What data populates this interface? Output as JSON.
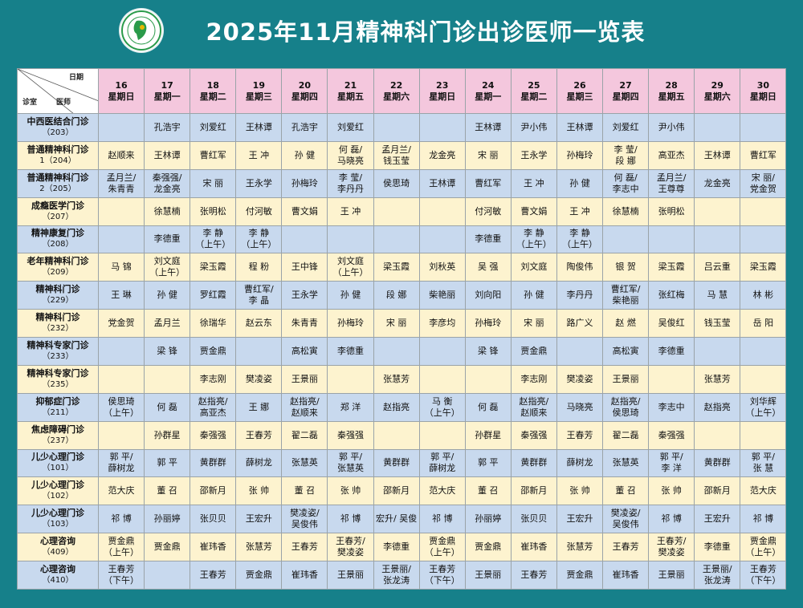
{
  "title": "2025年11月精神科门诊出诊医师一览表",
  "logo_icon": "hospital-logo-icon",
  "corner": {
    "date": "日期",
    "clinic": "诊室",
    "doctor": "医师"
  },
  "days": [
    {
      "d": "16",
      "w": "星期日"
    },
    {
      "d": "17",
      "w": "星期一"
    },
    {
      "d": "18",
      "w": "星期二"
    },
    {
      "d": "19",
      "w": "星期三"
    },
    {
      "d": "20",
      "w": "星期四"
    },
    {
      "d": "21",
      "w": "星期五"
    },
    {
      "d": "22",
      "w": "星期六"
    },
    {
      "d": "23",
      "w": "星期日"
    },
    {
      "d": "24",
      "w": "星期一"
    },
    {
      "d": "25",
      "w": "星期二"
    },
    {
      "d": "26",
      "w": "星期三"
    },
    {
      "d": "27",
      "w": "星期四"
    },
    {
      "d": "28",
      "w": "星期五"
    },
    {
      "d": "29",
      "w": "星期六"
    },
    {
      "d": "30",
      "w": "星期日"
    }
  ],
  "rows": [
    {
      "name": "中西医结合门诊",
      "sub": "（203）",
      "bg": "blue",
      "cells": [
        [],
        [
          "孔浩宇"
        ],
        [
          "刘爱红"
        ],
        [
          "王林谭"
        ],
        [
          "孔浩宇"
        ],
        [
          "刘爱红"
        ],
        [],
        [],
        [
          "王林谭"
        ],
        [
          "尹小伟"
        ],
        [
          "王林谭"
        ],
        [
          "刘爱红"
        ],
        [
          "尹小伟"
        ],
        [],
        []
      ]
    },
    {
      "name": "普通精神科门诊",
      "sub": "1（204）",
      "bg": "cream",
      "cells": [
        [
          "赵顺来"
        ],
        [
          "王林谭"
        ],
        [
          "曹红军"
        ],
        [
          "王  冲"
        ],
        [
          "孙  健"
        ],
        [
          "何  磊/",
          "马晓亮"
        ],
        [
          "孟月兰/",
          "钱玉莹"
        ],
        [
          "龙金亮"
        ],
        [
          "宋  丽"
        ],
        [
          "王永学"
        ],
        [
          "孙梅玲"
        ],
        [
          "李  莹/",
          "段  娜"
        ],
        [
          "高亚杰"
        ],
        [
          "王林谭"
        ],
        [
          "曹红军"
        ]
      ]
    },
    {
      "name": "普通精神科门诊",
      "sub": "2（205）",
      "bg": "blue",
      "cells": [
        [
          "孟月兰/",
          "朱青青"
        ],
        [
          "秦强强/",
          "龙金亮"
        ],
        [
          "宋  丽"
        ],
        [
          "王永学"
        ],
        [
          "孙梅玲"
        ],
        [
          "李  莹/",
          "李丹丹"
        ],
        [
          "侯思琦"
        ],
        [
          "王林谭"
        ],
        [
          "曹红军"
        ],
        [
          "王  冲"
        ],
        [
          "孙  健"
        ],
        [
          "何  磊/",
          "李志中"
        ],
        [
          "孟月兰/",
          "王尊尊"
        ],
        [
          "龙金亮"
        ],
        [
          "宋  丽/",
          "党金贺"
        ]
      ]
    },
    {
      "name": "成瘾医学门诊",
      "sub": "（207）",
      "bg": "cream",
      "cells": [
        [],
        [
          "徐慧楠"
        ],
        [
          "张明松"
        ],
        [
          "付河敏"
        ],
        [
          "曹文娟"
        ],
        [
          "王  冲"
        ],
        [],
        [],
        [
          "付河敏"
        ],
        [
          "曹文娟"
        ],
        [
          "王  冲"
        ],
        [
          "徐慧楠"
        ],
        [
          "张明松"
        ],
        [],
        []
      ]
    },
    {
      "name": "精神康复门诊",
      "sub": "（208）",
      "bg": "blue",
      "cells": [
        [],
        [
          "李德重"
        ],
        [
          "李  静",
          "（上午）"
        ],
        [
          "李  静",
          "（上午）"
        ],
        [],
        [],
        [],
        [],
        [
          "李德重"
        ],
        [
          "李  静",
          "（上午）"
        ],
        [
          "李  静",
          "（上午）"
        ],
        [],
        [],
        [],
        []
      ]
    },
    {
      "name": "老年精神科门诊",
      "sub": "（209）",
      "bg": "cream",
      "cells": [
        [
          "马  锦"
        ],
        [
          "刘文庭",
          "（上午）"
        ],
        [
          "梁玉霞"
        ],
        [
          "程  粉"
        ],
        [
          "王中锋"
        ],
        [
          "刘文庭",
          "（上午）"
        ],
        [
          "梁玉霞"
        ],
        [
          "刘秋英"
        ],
        [
          "吴  强"
        ],
        [
          "刘文庭"
        ],
        [
          "陶俊伟"
        ],
        [
          "银  贺"
        ],
        [
          "梁玉霞"
        ],
        [
          "吕云重"
        ],
        [
          "梁玉霞"
        ]
      ]
    },
    {
      "name": "精神科门诊",
      "sub": "（229）",
      "bg": "blue",
      "cells": [
        [
          "王  琳"
        ],
        [
          "孙  健"
        ],
        [
          "罗红霞"
        ],
        [
          "曹红军/",
          "李  晶"
        ],
        [
          "王永学"
        ],
        [
          "孙  健"
        ],
        [
          "段  娜"
        ],
        [
          "柴艳丽"
        ],
        [
          "刘向阳"
        ],
        [
          "孙  健"
        ],
        [
          "李丹丹"
        ],
        [
          "曹红军/",
          "柴艳丽"
        ],
        [
          "张红梅"
        ],
        [
          "马  慧"
        ],
        [
          "林  彬"
        ]
      ]
    },
    {
      "name": "精神科门诊",
      "sub": "（232）",
      "bg": "cream",
      "cells": [
        [
          "党金贺"
        ],
        [
          "孟月兰"
        ],
        [
          "徐瑞华"
        ],
        [
          "赵云东"
        ],
        [
          "朱青青"
        ],
        [
          "孙梅玲"
        ],
        [
          "宋  丽"
        ],
        [
          "李彦均"
        ],
        [
          "孙梅玲"
        ],
        [
          "宋  丽"
        ],
        [
          "路广义"
        ],
        [
          "赵  燃"
        ],
        [
          "吴俊红"
        ],
        [
          "钱玉莹"
        ],
        [
          "岳  阳"
        ]
      ]
    },
    {
      "name": "精神科专家门诊",
      "sub": "（233）",
      "bg": "blue",
      "cells": [
        [],
        [
          "梁  锋"
        ],
        [
          "贾金鼎"
        ],
        [],
        [
          "高松寅"
        ],
        [
          "李德重"
        ],
        [],
        [],
        [
          "梁  锋"
        ],
        [
          "贾金鼎"
        ],
        [],
        [
          "高松寅"
        ],
        [
          "李德重"
        ],
        [],
        []
      ]
    },
    {
      "name": "精神科专家门诊",
      "sub": "（235）",
      "bg": "cream",
      "cells": [
        [],
        [],
        [
          "李志刚"
        ],
        [
          "樊凌姿"
        ],
        [
          "王景丽"
        ],
        [],
        [
          "张慧芳"
        ],
        [],
        [],
        [
          "李志刚"
        ],
        [
          "樊凌姿"
        ],
        [
          "王景丽"
        ],
        [],
        [
          "张慧芳"
        ],
        []
      ]
    },
    {
      "name": "抑郁症门诊",
      "sub": "（211）",
      "bg": "blue",
      "cells": [
        [
          "侯思琦",
          "（上午）"
        ],
        [
          "何  磊"
        ],
        [
          "赵指亮/",
          "高亚杰"
        ],
        [
          "王  娜"
        ],
        [
          "赵指亮/",
          "赵顺来"
        ],
        [
          "郑  洋"
        ],
        [
          "赵指亮"
        ],
        [
          "马  衡",
          "（上午）"
        ],
        [
          "何  磊"
        ],
        [
          "赵指亮/",
          "赵顺来"
        ],
        [
          "马晓亮"
        ],
        [
          "赵指亮/",
          "侯思琦"
        ],
        [
          "李志中"
        ],
        [
          "赵指亮"
        ],
        [
          "刘华辉",
          "（上午）"
        ]
      ]
    },
    {
      "name": "焦虑障碍门诊",
      "sub": "（237）",
      "bg": "cream",
      "cells": [
        [],
        [
          "孙群星"
        ],
        [
          "秦强强"
        ],
        [
          "王春芳"
        ],
        [
          "翟二磊"
        ],
        [
          "秦强强"
        ],
        [],
        [],
        [
          "孙群星"
        ],
        [
          "秦强强"
        ],
        [
          "王春芳"
        ],
        [
          "翟二磊"
        ],
        [
          "秦强强"
        ],
        [],
        []
      ]
    },
    {
      "name": "儿少心理门诊",
      "sub": "（101）",
      "bg": "blue",
      "cells": [
        [
          "郭  平/",
          "薛树龙"
        ],
        [
          "郭  平"
        ],
        [
          "黄群群"
        ],
        [
          "薛树龙"
        ],
        [
          "张慧英"
        ],
        [
          "郭  平/",
          "张慧英"
        ],
        [
          "黄群群"
        ],
        [
          "郭  平/",
          "薛树龙"
        ],
        [
          "郭  平"
        ],
        [
          "黄群群"
        ],
        [
          "薛树龙"
        ],
        [
          "张慧英"
        ],
        [
          "郭  平/",
          "李  洋"
        ],
        [
          "黄群群"
        ],
        [
          "郭  平/",
          "张  慧"
        ]
      ]
    },
    {
      "name": "儿少心理门诊",
      "sub": "（102）",
      "bg": "cream",
      "cells": [
        [
          "范大庆"
        ],
        [
          "董  召"
        ],
        [
          "邵新月"
        ],
        [
          "张  帅"
        ],
        [
          "董  召"
        ],
        [
          "张  帅"
        ],
        [
          "邵新月"
        ],
        [
          "范大庆"
        ],
        [
          "董  召"
        ],
        [
          "邵新月"
        ],
        [
          "张  帅"
        ],
        [
          "董  召"
        ],
        [
          "张  帅"
        ],
        [
          "邵新月"
        ],
        [
          "范大庆"
        ]
      ]
    },
    {
      "name": "儿少心理门诊",
      "sub": "（103）",
      "bg": "blue",
      "cells": [
        [
          "祁  博"
        ],
        [
          "孙丽婷"
        ],
        [
          "张贝贝"
        ],
        [
          "王宏升"
        ],
        [
          "樊凌姿/",
          "吴俊伟"
        ],
        [
          "祁  博"
        ],
        [
          "宏升/ 吴俊"
        ],
        [
          "祁  博"
        ],
        [
          "孙丽婷"
        ],
        [
          "张贝贝"
        ],
        [
          "王宏升"
        ],
        [
          "樊凌姿/",
          "吴俊伟"
        ],
        [
          "祁  博"
        ],
        [
          "王宏升"
        ],
        [
          "祁  博"
        ]
      ]
    },
    {
      "name": "心理咨询",
      "sub": "（409）",
      "bg": "cream",
      "cells": [
        [
          "贾金鼎",
          "（上午）"
        ],
        [
          "贾金鼎"
        ],
        [
          "崔玮香"
        ],
        [
          "张慧芳"
        ],
        [
          "王春芳"
        ],
        [
          "王春芳/",
          "樊凌姿"
        ],
        [
          "李德重"
        ],
        [
          "贾金鼎",
          "（上午）"
        ],
        [
          "贾金鼎"
        ],
        [
          "崔玮香"
        ],
        [
          "张慧芳"
        ],
        [
          "王春芳"
        ],
        [
          "王春芳/",
          "樊凌姿"
        ],
        [
          "李德重"
        ],
        [
          "贾金鼎",
          "（上午）"
        ]
      ]
    },
    {
      "name": "心理咨询",
      "sub": "（410）",
      "bg": "blue",
      "cells": [
        [
          "王春芳",
          "（下午）"
        ],
        [],
        [
          "王春芳"
        ],
        [
          "贾金鼎"
        ],
        [
          "崔玮香"
        ],
        [
          "王景丽"
        ],
        [
          "王景丽/",
          "张龙涛"
        ],
        [
          "王春芳",
          "（下午）"
        ],
        [
          "王景丽"
        ],
        [
          "王春芳"
        ],
        [
          "贾金鼎"
        ],
        [
          "崔玮香"
        ],
        [
          "王景丽"
        ],
        [
          "王景丽/",
          "张龙涛"
        ],
        [
          "王春芳",
          "（下午）"
        ]
      ]
    }
  ]
}
